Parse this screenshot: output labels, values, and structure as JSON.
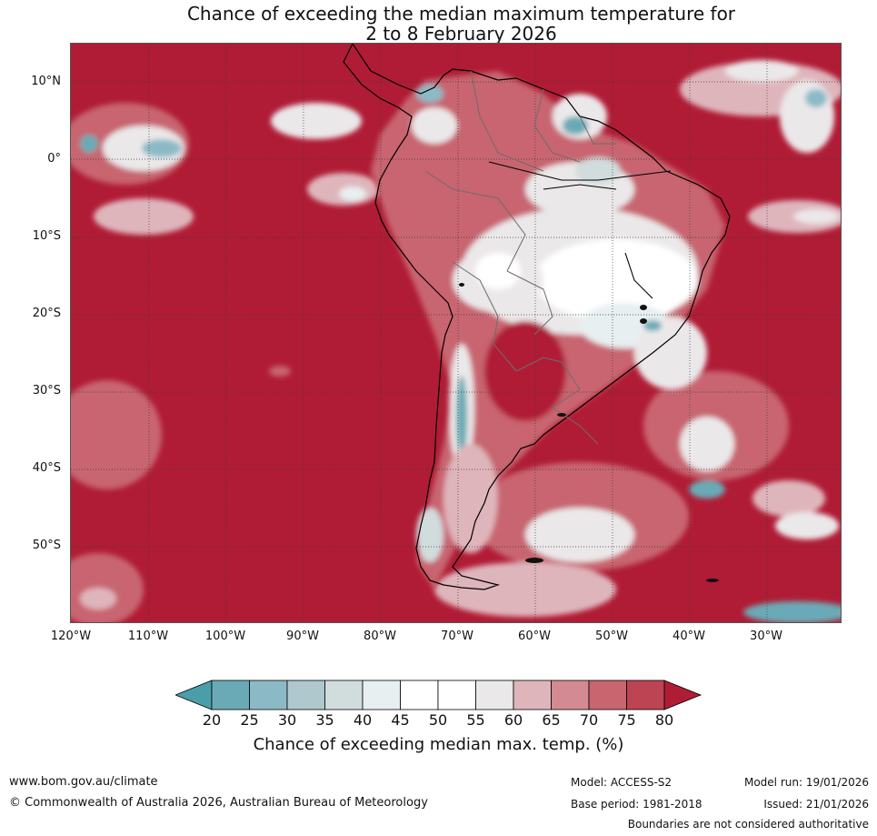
{
  "title": {
    "line1": "Chance of exceeding the median maximum temperature for",
    "line2": "2 to 8 February 2026"
  },
  "map": {
    "latitude_labels": [
      "10°N",
      "0°",
      "10°S",
      "20°S",
      "30°S",
      "40°S",
      "50°S"
    ],
    "longitude_labels": [
      "120°W",
      "110°W",
      "100°W",
      "90°W",
      "80°W",
      "70°W",
      "60°W",
      "50°W",
      "40°W",
      "30°W"
    ],
    "dominant_category": "80+",
    "region": "South America and surrounding oceans"
  },
  "colorbar": {
    "ticks": [
      "20",
      "25",
      "30",
      "35",
      "40",
      "45",
      "50",
      "55",
      "60",
      "65",
      "70",
      "75",
      "80"
    ],
    "colors": [
      "#4a9eaa",
      "#6aaab6",
      "#8bbac6",
      "#aec8cd",
      "#d1dcdd",
      "#e8eff1",
      "#ffffff",
      "#ffffff",
      "#ebe8e9",
      "#dfb5bc",
      "#d48a93",
      "#c8656f",
      "#bd4453",
      "#b01c35"
    ],
    "label": "Chance of exceeding median max. temp. (%)"
  },
  "footer": {
    "website": "www.bom.gov.au/climate",
    "copyright": "© Commonwealth of Australia 2026, Australian Bureau of Meteorology",
    "model": "Model: ACCESS-S2",
    "base_period": "Base period: 1981-2018",
    "model_run": "Model run: 19/01/2026",
    "issued": "Issued: 21/01/2026",
    "disclaimer": "Boundaries are not considered authoritative"
  }
}
